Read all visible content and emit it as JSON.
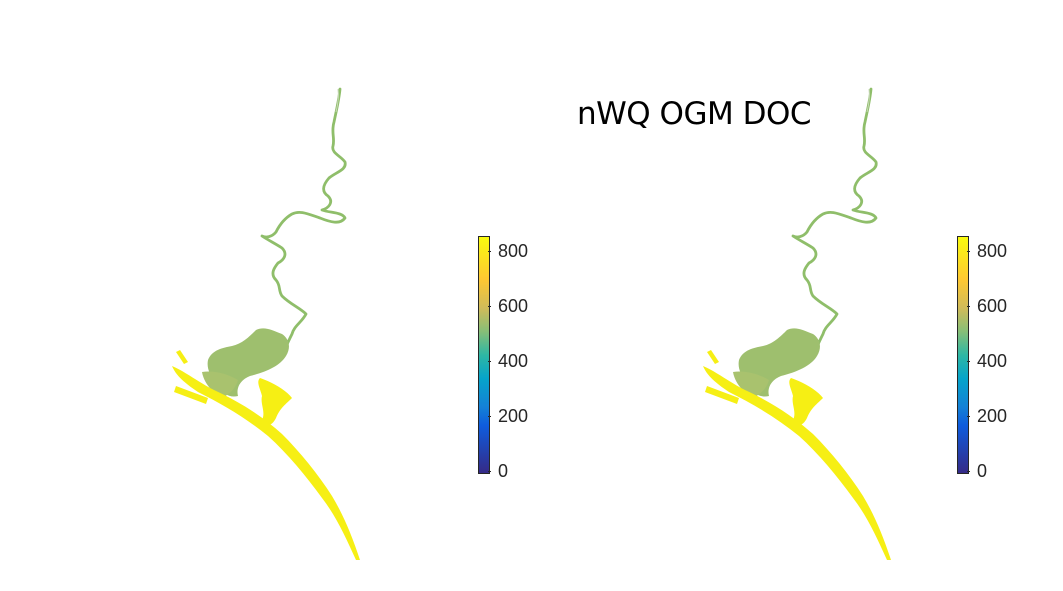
{
  "title": "nWQ OGM DOC",
  "colorbar": {
    "min": 0,
    "max": 850,
    "ticks": [
      "0",
      "200",
      "400",
      "600",
      "800"
    ],
    "colormap": [
      "#352a87",
      "#0f5cdd",
      "#06a4ca",
      "#87bf77",
      "#fec832",
      "#f9fb0e"
    ]
  },
  "panels": [
    {
      "name": "left-map"
    },
    {
      "name": "right-map"
    }
  ],
  "colors": {
    "lagoon": "#9ebf6e",
    "river": "#8fbe6a",
    "coast": "#f6ef14"
  }
}
